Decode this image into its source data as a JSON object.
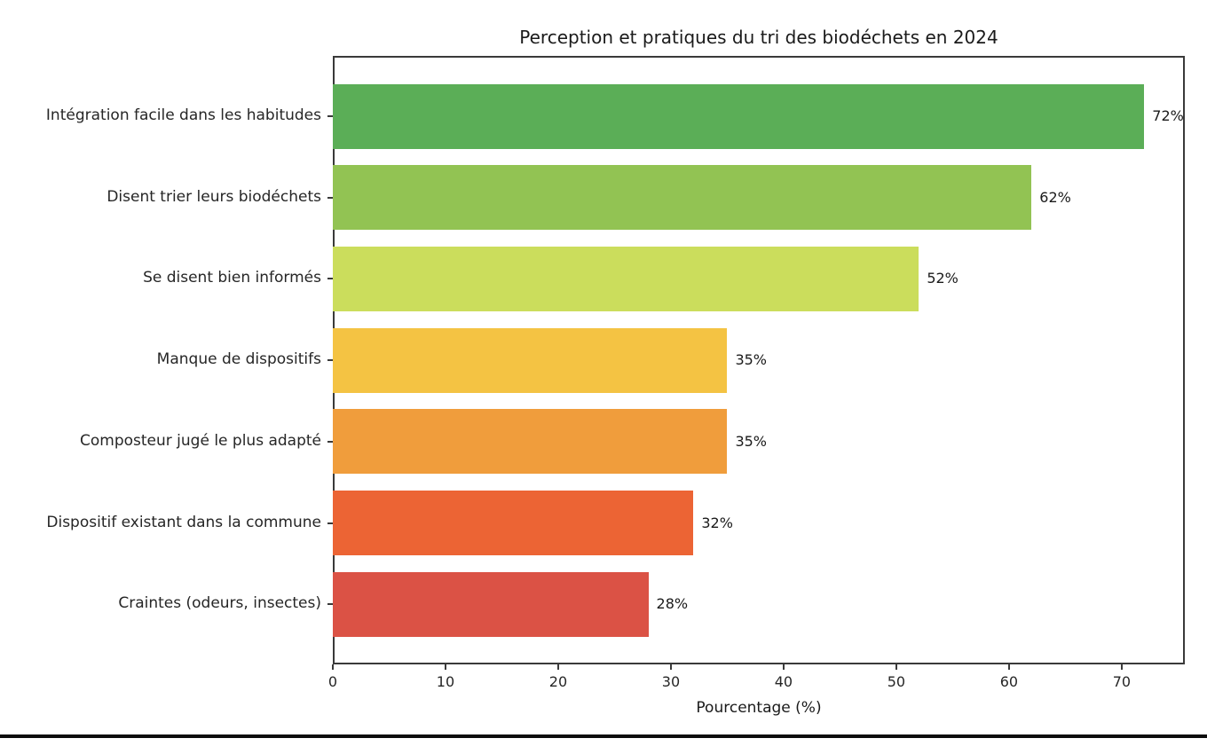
{
  "page": {
    "background": "#ffffff",
    "bottom_rule_color": "#0d0d0d"
  },
  "chart_data": {
    "type": "bar",
    "orientation": "horizontal",
    "title": "Perception et pratiques du tri des biodéchets en 2024",
    "xlabel": "Pourcentage (%)",
    "ylabel": "",
    "categories": [
      "Intégration facile dans les habitudes",
      "Disent trier leurs biodéchets",
      "Se disent bien informés",
      "Manque de dispositifs",
      "Composteur jugé le plus adapté",
      "Dispositif existant dans la commune",
      "Craintes (odeurs, insectes)"
    ],
    "values": [
      72,
      62,
      52,
      35,
      35,
      32,
      28
    ],
    "value_labels": [
      "72%",
      "62%",
      "52%",
      "35%",
      "35%",
      "32%",
      "28%"
    ],
    "bar_colors": [
      "#5bae57",
      "#92c353",
      "#cbdd5c",
      "#f4c343",
      "#f09d3c",
      "#ec6434",
      "#db5245"
    ],
    "xlim": [
      0,
      75.6
    ],
    "xticks": [
      0,
      10,
      20,
      30,
      40,
      50,
      60,
      70
    ],
    "xtick_labels": [
      "0",
      "10",
      "20",
      "30",
      "40",
      "50",
      "60",
      "70"
    ],
    "grid": false,
    "legend": null
  }
}
